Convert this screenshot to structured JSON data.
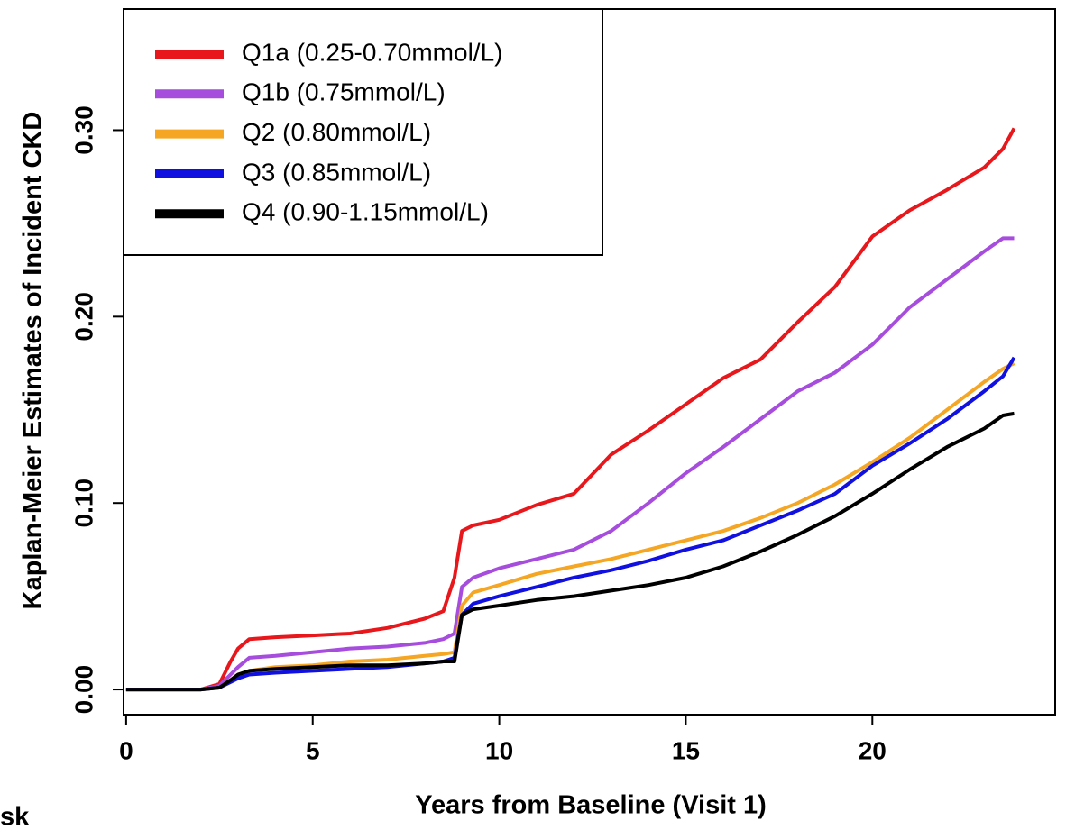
{
  "chart_data": {
    "type": "line",
    "xlabel": "Years from Baseline (Visit 1)",
    "ylabel": "Kaplan-Meier Estimates of Incident CKD",
    "annotations": [
      "sk"
    ],
    "legend": "top-left",
    "x": [
      0,
      1,
      2,
      2.5,
      2.8,
      3,
      3.3,
      4,
      5,
      6,
      7,
      8,
      8.5,
      8.8,
      9,
      9.3,
      10,
      11,
      12,
      13,
      14,
      15,
      16,
      17,
      18,
      19,
      20,
      21,
      22,
      23,
      23.5,
      23.8
    ],
    "series": [
      {
        "name": "Q1a (0.25-0.70mmol/L)",
        "color": "#e8171b",
        "values": [
          0,
          0,
          0,
          0.003,
          0.015,
          0.022,
          0.027,
          0.028,
          0.029,
          0.03,
          0.033,
          0.038,
          0.042,
          0.06,
          0.085,
          0.088,
          0.091,
          0.099,
          0.105,
          0.126,
          0.139,
          0.153,
          0.167,
          0.177,
          0.197,
          0.216,
          0.243,
          0.257,
          0.268,
          0.28,
          0.29,
          0.301
        ]
      },
      {
        "name": "Q1b (0.75mmol/L)",
        "color": "#a64dde",
        "values": [
          0,
          0,
          0,
          0.002,
          0.008,
          0.012,
          0.017,
          0.018,
          0.02,
          0.022,
          0.023,
          0.025,
          0.027,
          0.03,
          0.055,
          0.06,
          0.065,
          0.07,
          0.075,
          0.085,
          0.1,
          0.116,
          0.13,
          0.145,
          0.16,
          0.17,
          0.185,
          0.205,
          0.22,
          0.235,
          0.242,
          0.242
        ]
      },
      {
        "name": "Q2 (0.80mmol/L)",
        "color": "#f5a623",
        "values": [
          0,
          0,
          0,
          0.001,
          0.005,
          0.008,
          0.01,
          0.012,
          0.013,
          0.015,
          0.016,
          0.018,
          0.019,
          0.02,
          0.045,
          0.052,
          0.056,
          0.062,
          0.066,
          0.07,
          0.075,
          0.08,
          0.085,
          0.092,
          0.1,
          0.11,
          0.122,
          0.135,
          0.15,
          0.165,
          0.172,
          0.175
        ]
      },
      {
        "name": "Q3 (0.85mmol/L)",
        "color": "#1010e0",
        "values": [
          0,
          0,
          0,
          0.001,
          0.004,
          0.006,
          0.008,
          0.009,
          0.01,
          0.011,
          0.012,
          0.014,
          0.015,
          0.017,
          0.04,
          0.046,
          0.05,
          0.055,
          0.06,
          0.064,
          0.069,
          0.075,
          0.08,
          0.088,
          0.096,
          0.105,
          0.12,
          0.132,
          0.145,
          0.16,
          0.168,
          0.178
        ]
      },
      {
        "name": "Q4 (0.90-1.15mmol/L)",
        "color": "#000000",
        "values": [
          0,
          0,
          0,
          0.001,
          0.005,
          0.008,
          0.01,
          0.011,
          0.012,
          0.013,
          0.013,
          0.014,
          0.015,
          0.015,
          0.04,
          0.043,
          0.045,
          0.048,
          0.05,
          0.053,
          0.056,
          0.06,
          0.066,
          0.074,
          0.083,
          0.093,
          0.105,
          0.118,
          0.13,
          0.14,
          0.147,
          0.148
        ]
      }
    ],
    "xlim": [
      -0.07,
      24.9
    ],
    "xticks": [
      0,
      5,
      10,
      15,
      20
    ],
    "ylim": [
      -0.0135,
      0.365
    ],
    "yticks": [
      {
        "value": 0,
        "label": "0.00"
      },
      {
        "value": 0.1,
        "label": "0.10"
      },
      {
        "value": 0.2,
        "label": "0.20"
      },
      {
        "value": 0.3,
        "label": "0.30"
      }
    ]
  }
}
